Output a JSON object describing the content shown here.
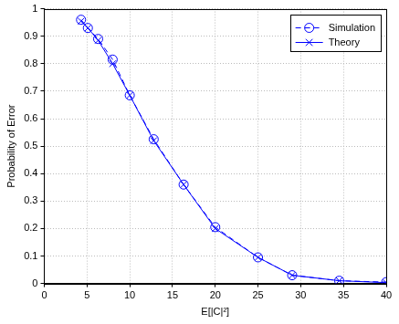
{
  "chart_data": {
    "type": "line",
    "x_label": "E[|C|²]",
    "y_label": "Probability of Error",
    "series": [
      {
        "name": "Simulation",
        "color": "#0000ff",
        "marker": "circle",
        "line_style": "dashed",
        "x": [
          4.3,
          5.1,
          6.3,
          8.0,
          10.0,
          12.8,
          16.3,
          20.0,
          25.0,
          29.0,
          34.5,
          40.0
        ],
        "values": [
          0.96,
          0.93,
          0.89,
          0.815,
          0.685,
          0.525,
          0.36,
          0.205,
          0.095,
          0.03,
          0.01,
          0.005
        ]
      },
      {
        "name": "Theory",
        "color": "#0000ff",
        "marker": "x",
        "line_style": "solid",
        "x": [
          4.3,
          5.1,
          6.3,
          8.0,
          10.0,
          12.8,
          16.3,
          20.0,
          25.0,
          29.0,
          34.5,
          40.0
        ],
        "values": [
          0.955,
          0.93,
          0.885,
          0.8,
          0.685,
          0.52,
          0.36,
          0.2,
          0.095,
          0.03,
          0.01,
          0.003
        ]
      }
    ],
    "xlim": [
      0,
      40
    ],
    "xticks": [
      0,
      5,
      10,
      15,
      20,
      25,
      30,
      35,
      40
    ],
    "ylim": [
      0,
      1
    ],
    "yticks": [
      0,
      0.1,
      0.2,
      0.3,
      0.4,
      0.5,
      0.6,
      0.7,
      0.8,
      0.9,
      1
    ],
    "grid": true,
    "legend": "upper right"
  }
}
